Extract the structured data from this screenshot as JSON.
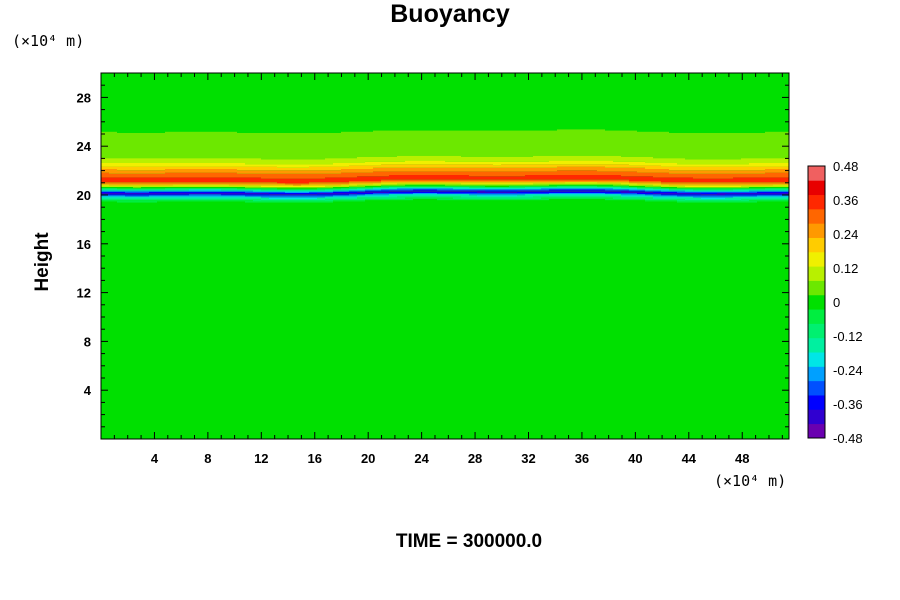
{
  "chart_data": {
    "type": "heatmap",
    "title": "Buoyancy",
    "ylabel": "Height",
    "x_unit": "(×10⁴ m)",
    "y_unit": "(×10⁴ m)",
    "time_label": "TIME = 300000.0",
    "xlim": [
      0,
      51.5
    ],
    "ylim": [
      0,
      30
    ],
    "x_ticks": [
      4,
      8,
      12,
      16,
      20,
      24,
      28,
      32,
      36,
      40,
      44,
      48
    ],
    "y_ticks": [
      4,
      8,
      12,
      16,
      20,
      24,
      28
    ],
    "colorbar": {
      "min": -0.48,
      "max": 0.48,
      "ticks": [
        "0.48",
        "0.36",
        "0.24",
        "0.12",
        "0",
        "-0.12",
        "-0.24",
        "-0.36",
        "-0.48"
      ],
      "colors": [
        "#6a00b0",
        "#3000d0",
        "#0000ff",
        "#0050ff",
        "#00a0ff",
        "#00e6e6",
        "#00f0a0",
        "#00f070",
        "#00ee40",
        "#00e000",
        "#6ce800",
        "#b8f000",
        "#f0f000",
        "#ffcc00",
        "#ff9900",
        "#ff6600",
        "#ff2800",
        "#e80000",
        "#f06060"
      ]
    },
    "profile": {
      "height": [
        0,
        18,
        19.5,
        19.9,
        20.2,
        20.5,
        20.9,
        21.2,
        21.6,
        22.1,
        22.7,
        23.3,
        24.5,
        26,
        30
      ],
      "buoyancy": [
        0,
        0,
        -0.02,
        -0.2,
        -0.42,
        -0.15,
        0.2,
        0.36,
        0.32,
        0.24,
        0.12,
        0.05,
        0.03,
        0.02,
        0.02
      ]
    }
  }
}
